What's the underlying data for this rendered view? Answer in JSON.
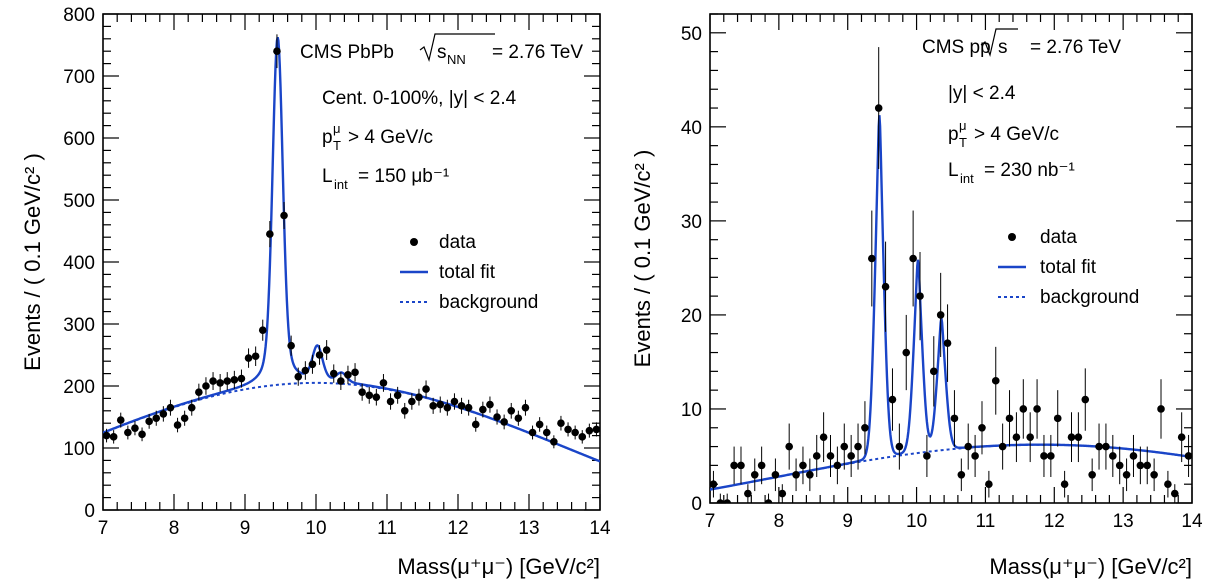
{
  "chart_data": [
    {
      "type": "scatter",
      "title": "",
      "xlabel": "Mass(μ⁺μ⁻) [GeV/c²]",
      "ylabel": "Events / ( 0.1 GeV/c² )",
      "xlim": [
        7,
        14
      ],
      "ylim": [
        0,
        800
      ],
      "xticks": [
        7,
        8,
        9,
        10,
        11,
        12,
        13,
        14
      ],
      "yticks": [
        0,
        100,
        200,
        300,
        400,
        500,
        600,
        700,
        800
      ],
      "experiment": "CMS PbPb",
      "energy": "= 2.76 TeV",
      "annotations": [
        "Cent. 0-100%, |y| < 2.4",
        "> 4 GeV/c",
        "= 150 μb⁻¹"
      ],
      "legend": [
        "data",
        "total fit",
        "background"
      ],
      "series": [
        {
          "name": "data",
          "x": [
            7.05,
            7.15,
            7.25,
            7.35,
            7.45,
            7.55,
            7.65,
            7.75,
            7.85,
            7.95,
            8.05,
            8.15,
            8.25,
            8.35,
            8.45,
            8.55,
            8.65,
            8.75,
            8.85,
            8.95,
            9.05,
            9.15,
            9.25,
            9.35,
            9.45,
            9.55,
            9.65,
            9.75,
            9.85,
            9.95,
            10.05,
            10.15,
            10.25,
            10.35,
            10.45,
            10.55,
            10.65,
            10.75,
            10.85,
            10.95,
            11.05,
            11.15,
            11.25,
            11.35,
            11.45,
            11.55,
            11.65,
            11.75,
            11.85,
            11.95,
            12.05,
            12.15,
            12.25,
            12.35,
            12.45,
            12.55,
            12.65,
            12.75,
            12.85,
            12.95,
            13.05,
            13.15,
            13.25,
            13.35,
            13.45,
            13.55,
            13.65,
            13.75,
            13.85,
            13.95
          ],
          "y": [
            120,
            118,
            145,
            125,
            132,
            122,
            143,
            148,
            155,
            165,
            137,
            148,
            165,
            190,
            200,
            208,
            205,
            208,
            210,
            212,
            245,
            248,
            290,
            445,
            740,
            475,
            265,
            215,
            225,
            235,
            250,
            258,
            220,
            208,
            218,
            222,
            190,
            185,
            182,
            205,
            175,
            185,
            160,
            175,
            182,
            195,
            168,
            170,
            165,
            175,
            168,
            165,
            138,
            162,
            170,
            150,
            142,
            160,
            148,
            165,
            125,
            138,
            125,
            110,
            140,
            130,
            125,
            118,
            128,
            130
          ],
          "err": "sqrt"
        },
        {
          "name": "total fit",
          "model": {
            "bg": {
              "amp": 205,
              "center": 10.0,
              "width": 2.7,
              "quad": 0.2
            },
            "peaks": [
              {
                "mass": 9.46,
                "amp": 560,
                "sigma": 0.07,
                "gamma": 0.11
              },
              {
                "mass": 10.02,
                "amp": 55,
                "sigma": 0.07,
                "gamma": 0.1
              },
              {
                "mass": 10.36,
                "amp": 15,
                "sigma": 0.07,
                "gamma": 0.1
              }
            ]
          }
        },
        {
          "name": "background",
          "model_ref": "bg"
        }
      ]
    },
    {
      "type": "scatter",
      "title": "",
      "xlabel": "Mass(μ⁺μ⁻) [GeV/c²]",
      "ylabel": "Events / ( 0.1 GeV/c² )",
      "xlim": [
        7,
        14
      ],
      "ylim": [
        0,
        52
      ],
      "xticks": [
        7,
        8,
        9,
        10,
        11,
        12,
        13,
        14
      ],
      "yticks": [
        0,
        10,
        20,
        30,
        40,
        50
      ],
      "experiment": "CMS pp",
      "energy": "= 2.76 TeV",
      "annotations": [
        "|y| < 2.4",
        "> 4 GeV/c",
        "= 230 nb⁻¹"
      ],
      "legend": [
        "data",
        "total fit",
        "background"
      ],
      "series": [
        {
          "name": "data",
          "x": [
            7.05,
            7.15,
            7.25,
            7.35,
            7.45,
            7.55,
            7.65,
            7.75,
            7.85,
            7.95,
            8.05,
            8.15,
            8.25,
            8.35,
            8.45,
            8.55,
            8.65,
            8.75,
            8.85,
            8.95,
            9.05,
            9.15,
            9.25,
            9.35,
            9.45,
            9.55,
            9.65,
            9.75,
            9.85,
            9.95,
            10.05,
            10.15,
            10.25,
            10.35,
            10.45,
            10.55,
            10.65,
            10.75,
            10.85,
            10.95,
            11.05,
            11.15,
            11.25,
            11.35,
            11.45,
            11.55,
            11.65,
            11.75,
            11.85,
            11.95,
            12.05,
            12.15,
            12.25,
            12.35,
            12.45,
            12.55,
            12.65,
            12.75,
            12.85,
            12.95,
            13.05,
            13.15,
            13.25,
            13.35,
            13.45,
            13.55,
            13.65,
            13.75,
            13.85,
            13.95
          ],
          "y": [
            2,
            0,
            0,
            4,
            4,
            1,
            3,
            4,
            0,
            3,
            1,
            6,
            3,
            4,
            3,
            5,
            7,
            5,
            4,
            6,
            5,
            6,
            8,
            26,
            42,
            23,
            11,
            6,
            16,
            26,
            22,
            5,
            14,
            20,
            17,
            9,
            3,
            6,
            5,
            8,
            2,
            13,
            6,
            9,
            7,
            10,
            7,
            10,
            5,
            5,
            9,
            2,
            7,
            7,
            11,
            3,
            6,
            6,
            5,
            4,
            3,
            5,
            4,
            4,
            3,
            10,
            2,
            1,
            7,
            5
          ],
          "err": "sqrt"
        },
        {
          "name": "total fit",
          "model": {
            "bg": {
              "amp": 6.2,
              "center": 11.8,
              "width": 3.0,
              "quad": 0.25
            },
            "peaks": [
              {
                "mass": 9.46,
                "amp": 36.5,
                "sigma": 0.07,
                "gamma": 0.03
              },
              {
                "mass": 10.02,
                "amp": 20.5,
                "sigma": 0.07,
                "gamma": 0.03
              },
              {
                "mass": 10.36,
                "amp": 14.0,
                "sigma": 0.07,
                "gamma": 0.03
              }
            ]
          }
        },
        {
          "name": "background",
          "model_ref": "bg"
        }
      ]
    }
  ],
  "colors": {
    "fit": "#1a45c8",
    "data": "#000000",
    "axis": "#000000"
  }
}
